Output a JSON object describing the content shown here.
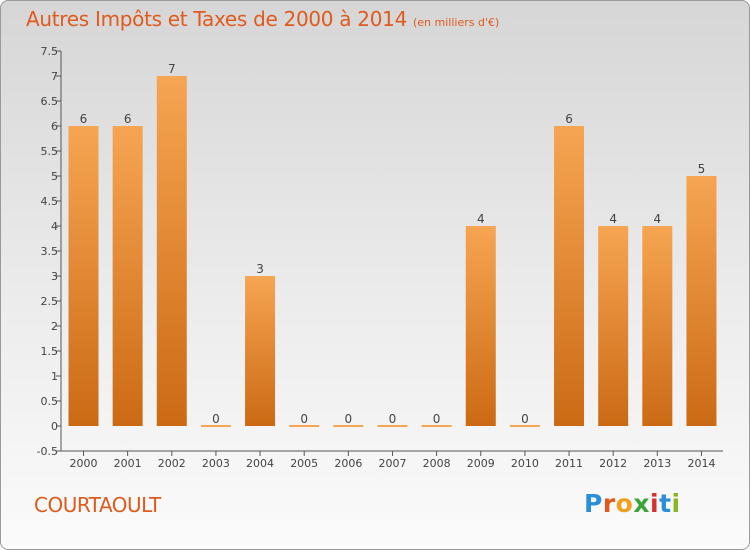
{
  "header": {
    "title": "Autres Impôts et Taxes de 2000 à 2014",
    "unit": "(en milliers d'€)"
  },
  "footer": {
    "commune": "COURTAOULT",
    "brand": "Proxiti"
  },
  "colors": {
    "title": "#e05a1e",
    "bar_light": "#f6a552",
    "bar_dark": "#cc6a14",
    "axis": "#555555"
  },
  "chart_data": {
    "type": "bar",
    "categories": [
      "2000",
      "2001",
      "2002",
      "2003",
      "2004",
      "2005",
      "2006",
      "2007",
      "2008",
      "2009",
      "2010",
      "2011",
      "2012",
      "2013",
      "2014"
    ],
    "values": [
      6,
      6,
      7,
      0,
      3,
      0,
      0,
      0,
      0,
      4,
      0,
      6,
      4,
      4,
      5
    ],
    "data_labels": [
      "6",
      "6",
      "7",
      "0",
      "3",
      "0",
      "0",
      "0",
      "0",
      "4",
      "0",
      "6",
      "4",
      "4",
      "5"
    ],
    "yticks": [
      "-0.5",
      "0",
      "0.5",
      "1",
      "1.5",
      "2",
      "2.5",
      "3",
      "3.5",
      "4",
      "4.5",
      "5",
      "5.5",
      "6",
      "6.5",
      "7",
      "7.5"
    ],
    "ylim": [
      -0.5,
      7.5
    ],
    "grid": false,
    "legend": "none"
  }
}
